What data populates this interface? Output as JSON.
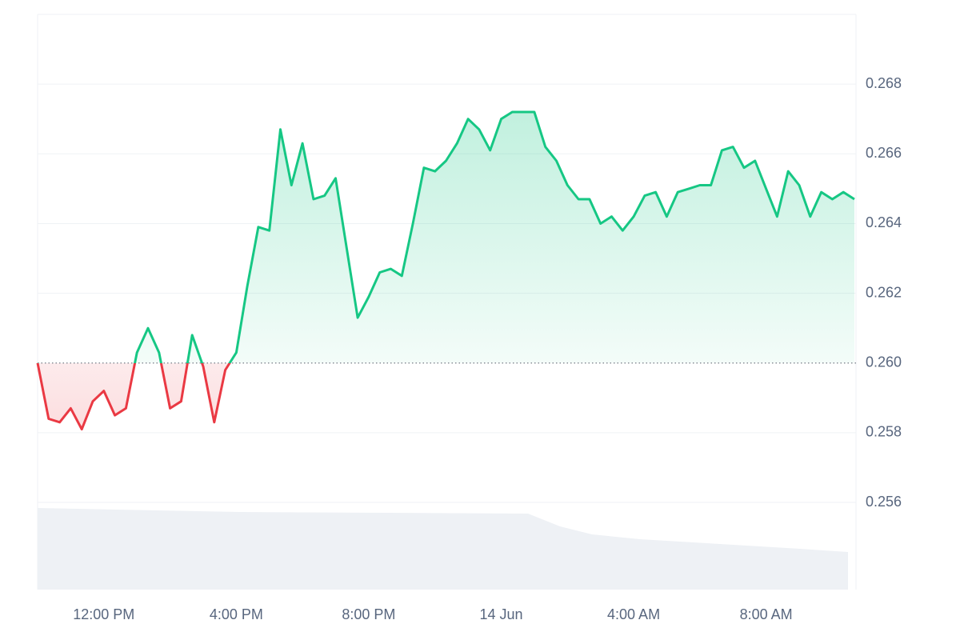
{
  "chart_data": {
    "type": "line",
    "categories": [
      null,
      null,
      null,
      null,
      null,
      null,
      "12:00 PM",
      null,
      null,
      null,
      null,
      null,
      null,
      null,
      null,
      null,
      null,
      null,
      "4:00 PM",
      null,
      null,
      null,
      null,
      null,
      null,
      null,
      null,
      null,
      null,
      null,
      "8:00 PM",
      null,
      null,
      null,
      null,
      null,
      null,
      null,
      null,
      null,
      null,
      null,
      "14 Jun",
      null,
      null,
      null,
      null,
      null,
      null,
      null,
      null,
      null,
      null,
      null,
      "4:00 AM",
      null,
      null,
      null,
      null,
      null,
      null,
      null,
      null,
      null,
      null,
      null,
      "8:00 AM",
      null,
      null,
      null,
      null,
      null,
      null,
      null,
      null
    ],
    "values": [
      0.26,
      0.2584,
      0.2583,
      0.2587,
      0.2581,
      0.2589,
      0.2592,
      0.2585,
      0.2587,
      0.2603,
      0.261,
      0.2603,
      0.2587,
      0.2589,
      0.2608,
      0.2599,
      0.2583,
      0.2598,
      0.2603,
      0.2622,
      0.2639,
      0.2638,
      0.2667,
      0.2651,
      0.2663,
      0.2647,
      0.2648,
      0.2653,
      0.2633,
      0.2613,
      0.2619,
      0.2626,
      0.2627,
      0.2625,
      0.264,
      0.2656,
      0.2655,
      0.2658,
      0.2663,
      0.267,
      0.2667,
      0.2661,
      0.267,
      0.2672,
      0.2672,
      0.2672,
      0.2662,
      0.2658,
      0.2651,
      0.2647,
      0.2647,
      0.264,
      0.2642,
      0.2638,
      0.2642,
      0.2648,
      0.2649,
      0.2642,
      0.2649,
      0.265,
      0.2651,
      0.2651,
      0.2661,
      0.2662,
      0.2656,
      0.2658,
      0.265,
      0.2642,
      0.2655,
      0.2651,
      0.2642,
      0.2649,
      0.2647,
      0.2649,
      0.2647
    ],
    "baseline": 0.26,
    "up_color": "#16c784",
    "down_color": "#ea3943",
    "ylim": [
      0.2535,
      0.27
    ],
    "yticks": [
      0.256,
      0.258,
      {
        "value": 0.26,
        "label": "0.260"
      },
      0.262,
      0.264,
      0.266,
      0.268
    ],
    "grid": true
  }
}
